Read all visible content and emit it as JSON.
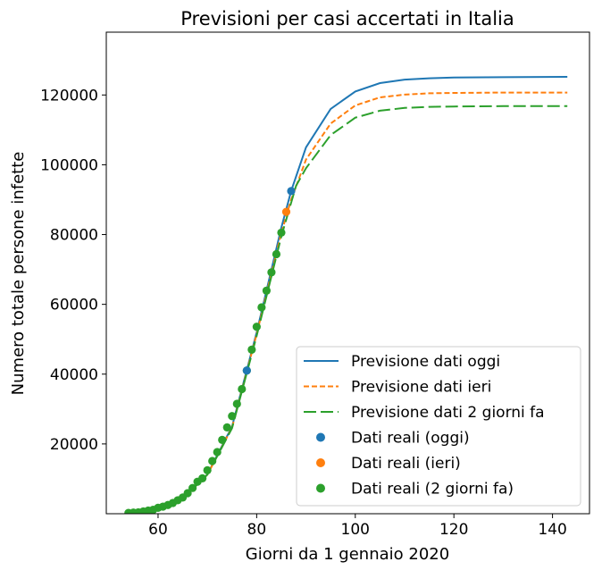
{
  "chart_data": {
    "type": "line",
    "title": "Previsioni per casi accertati in Italia",
    "xlabel": "Giorni da 1 gennaio 2020",
    "ylabel": "Numero totale persone infette",
    "xlim": [
      49.5,
      147.5
    ],
    "ylim": [
      0,
      138000
    ],
    "xticks": [
      60,
      80,
      100,
      120,
      140
    ],
    "yticks": [
      20000,
      40000,
      60000,
      80000,
      100000,
      120000
    ],
    "grid": false,
    "legend_position": "lower right",
    "colors": {
      "blue": "#1f77b4",
      "orange": "#ff7f0e",
      "green": "#2ca02c"
    },
    "series": [
      {
        "name": "Previsione dati oggi",
        "kind": "line",
        "style": "solid",
        "color": "#1f77b4",
        "x": [
          54,
          60,
          65,
          70,
          75,
          80,
          85,
          87,
          90,
          95,
          100,
          105,
          110,
          115,
          120,
          130,
          143
        ],
        "y": [
          350,
          1600,
          4300,
          11300,
          25000,
          52000,
          82000,
          92500,
          105000,
          116000,
          121000,
          123400,
          124400,
          124800,
          125000,
          125100,
          125200
        ]
      },
      {
        "name": "Previsione dati ieri",
        "kind": "line",
        "style": "dashed",
        "color": "#ff7f0e",
        "x": [
          54,
          60,
          65,
          70,
          75,
          80,
          85,
          87,
          90,
          95,
          100,
          105,
          110,
          115,
          120,
          130,
          143
        ],
        "y": [
          350,
          1600,
          4300,
          11200,
          24700,
          51500,
          80500,
          90000,
          101500,
          111800,
          117000,
          119300,
          120100,
          120500,
          120600,
          120700,
          120700
        ]
      },
      {
        "name": "Previsione dati 2 giorni fa",
        "kind": "line",
        "style": "longdash",
        "color": "#2ca02c",
        "x": [
          54,
          60,
          65,
          70,
          75,
          80,
          85,
          88,
          90,
          95,
          100,
          105,
          110,
          115,
          120,
          130,
          143
        ],
        "y": [
          350,
          1600,
          4300,
          11200,
          24500,
          51000,
          79500,
          94000,
          99000,
          108500,
          113500,
          115500,
          116300,
          116600,
          116700,
          116800,
          116800
        ]
      },
      {
        "name": "Dati reali (oggi)",
        "kind": "scatter",
        "color": "#1f77b4",
        "x": [
          78,
          87
        ],
        "y": [
          41035,
          92472
        ]
      },
      {
        "name": "Dati reali (ieri)",
        "kind": "scatter",
        "color": "#ff7f0e",
        "x": [
          86
        ],
        "y": [
          86498
        ]
      },
      {
        "name": "Dati reali (2 giorni fa)",
        "kind": "scatter",
        "color": "#2ca02c",
        "x": [
          54,
          55,
          56,
          57,
          58,
          59,
          60,
          61,
          62,
          63,
          64,
          65,
          66,
          67,
          68,
          69,
          70,
          71,
          72,
          73,
          74,
          75,
          76,
          77,
          78,
          79,
          80,
          81,
          82,
          83,
          84,
          85
        ],
        "y": [
          229,
          322,
          400,
          650,
          888,
          1128,
          1694,
          2036,
          2502,
          3089,
          3858,
          4636,
          5883,
          7375,
          9172,
          10149,
          12462,
          15113,
          17660,
          21157,
          24747,
          27980,
          31506,
          35713,
          41035,
          47021,
          53578,
          59138,
          63927,
          69176,
          74386,
          80539
        ]
      }
    ]
  }
}
